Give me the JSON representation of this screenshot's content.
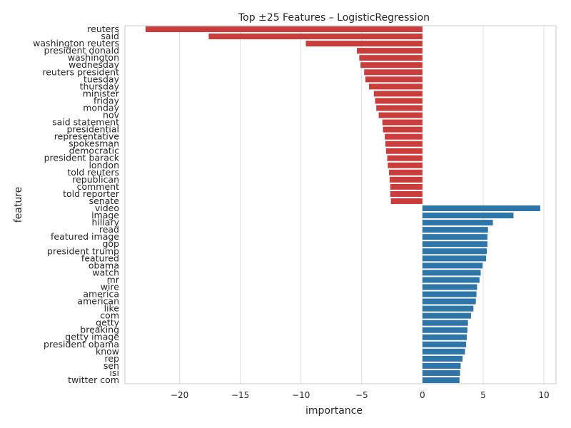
{
  "chart_data": {
    "type": "bar",
    "orientation": "horizontal",
    "title": "Top ±25 Features – LogisticRegression",
    "xlabel": "importance",
    "ylabel": "feature",
    "xlim": [
      -24.5,
      11.0
    ],
    "xticks": [
      -20,
      -15,
      -10,
      -5,
      0,
      5,
      10
    ],
    "xtick_labels": [
      "−20",
      "−15",
      "−10",
      "−5",
      "0",
      "5",
      "10"
    ],
    "grid": "vertical",
    "legend": "none",
    "colors": {
      "negative": "#c93d3d",
      "positive": "#2e75a8",
      "grid": "#dedede",
      "axes": "#c8c8c8"
    },
    "categories": [
      "reuters",
      "said",
      "washington reuters",
      "president donald",
      "washington",
      "wednesday",
      "reuters president",
      "tuesday",
      "thursday",
      "minister",
      "friday",
      "monday",
      "nov",
      "said statement",
      "presidential",
      "representative",
      "spokesman",
      "democratic",
      "president barack",
      "london",
      "told reuters",
      "republican",
      "comment",
      "told reporter",
      "senate",
      "video",
      "image",
      "hillary",
      "read",
      "featured image",
      "gop",
      "president trump",
      "featured",
      "obama",
      "watch",
      "mr",
      "wire",
      "america",
      "american",
      "like",
      "com",
      "getty",
      "breaking",
      "getty image",
      "president obama",
      "know",
      "rep",
      "sen",
      "isi",
      "twitter com"
    ],
    "values": [
      -22.8,
      -17.6,
      -9.6,
      -5.4,
      -5.2,
      -5.1,
      -4.8,
      -4.7,
      -4.4,
      -4.0,
      -3.9,
      -3.8,
      -3.6,
      -3.3,
      -3.25,
      -3.1,
      -3.05,
      -3.0,
      -2.9,
      -2.85,
      -2.75,
      -2.7,
      -2.65,
      -2.65,
      -2.6,
      9.7,
      7.5,
      5.8,
      5.4,
      5.35,
      5.35,
      5.3,
      5.25,
      4.95,
      4.8,
      4.7,
      4.5,
      4.45,
      4.4,
      4.2,
      4.0,
      3.75,
      3.7,
      3.65,
      3.6,
      3.5,
      3.3,
      3.15,
      3.1,
      3.05
    ]
  }
}
